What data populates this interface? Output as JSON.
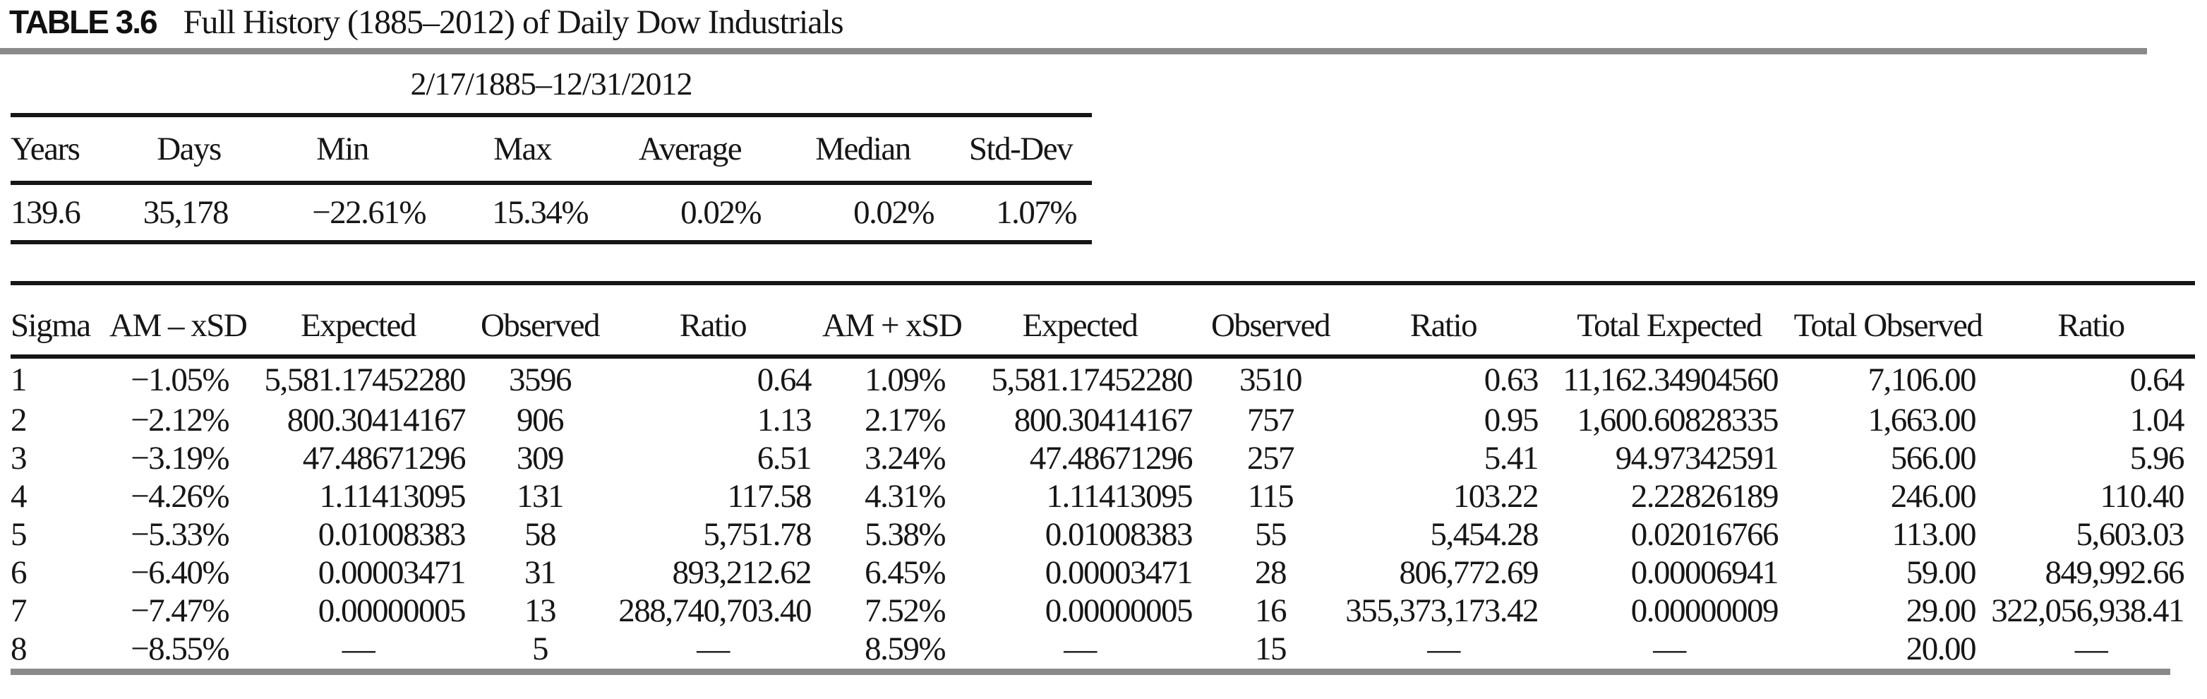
{
  "caption": {
    "label": "TABLE 3.6",
    "title": "Full History (1885–2012) of Daily Dow Industrials"
  },
  "summary": {
    "date_range": "2/17/1885–12/31/2012",
    "columns": [
      "Years",
      "Days",
      "Min",
      "Max",
      "Average",
      "Median",
      "Std-Dev"
    ],
    "values": [
      "139.6",
      "35,178",
      "−22.61%",
      "15.34%",
      "0.02%",
      "0.02%",
      "1.07%"
    ]
  },
  "main_table": {
    "columns": [
      "Sigma",
      "AM – xSD",
      "Expected",
      "Observed",
      "Ratio",
      "AM + xSD",
      "Expected",
      "Observed",
      "Ratio",
      "Total Expected",
      "Total Observed",
      "Ratio"
    ],
    "rows": [
      [
        "1",
        "−1.05%",
        "5,581.17452280",
        "3596",
        "0.64",
        "1.09%",
        "5,581.17452280",
        "3510",
        "0.63",
        "11,162.34904560",
        "7,106.00",
        "0.64"
      ],
      [
        "2",
        "−2.12%",
        "800.30414167",
        "906",
        "1.13",
        "2.17%",
        "800.30414167",
        "757",
        "0.95",
        "1,600.60828335",
        "1,663.00",
        "1.04"
      ],
      [
        "3",
        "−3.19%",
        "47.48671296",
        "309",
        "6.51",
        "3.24%",
        "47.48671296",
        "257",
        "5.41",
        "94.97342591",
        "566.00",
        "5.96"
      ],
      [
        "4",
        "−4.26%",
        "1.11413095",
        "131",
        "117.58",
        "4.31%",
        "1.11413095",
        "115",
        "103.22",
        "2.22826189",
        "246.00",
        "110.40"
      ],
      [
        "5",
        "−5.33%",
        "0.01008383",
        "58",
        "5,751.78",
        "5.38%",
        "0.01008383",
        "55",
        "5,454.28",
        "0.02016766",
        "113.00",
        "5,603.03"
      ],
      [
        "6",
        "−6.40%",
        "0.00003471",
        "31",
        "893,212.62",
        "6.45%",
        "0.00003471",
        "28",
        "806,772.69",
        "0.00006941",
        "59.00",
        "849,992.66"
      ],
      [
        "7",
        "−7.47%",
        "0.00000005",
        "13",
        "288,740,703.40",
        "7.52%",
        "0.00000005",
        "16",
        "355,373,173.42",
        "0.00000009",
        "29.00",
        "322,056,938.41"
      ],
      [
        "8",
        "−8.55%",
        "—",
        "5",
        "—",
        "8.59%",
        "—",
        "15",
        "—",
        "—",
        "20.00",
        "—"
      ]
    ]
  }
}
